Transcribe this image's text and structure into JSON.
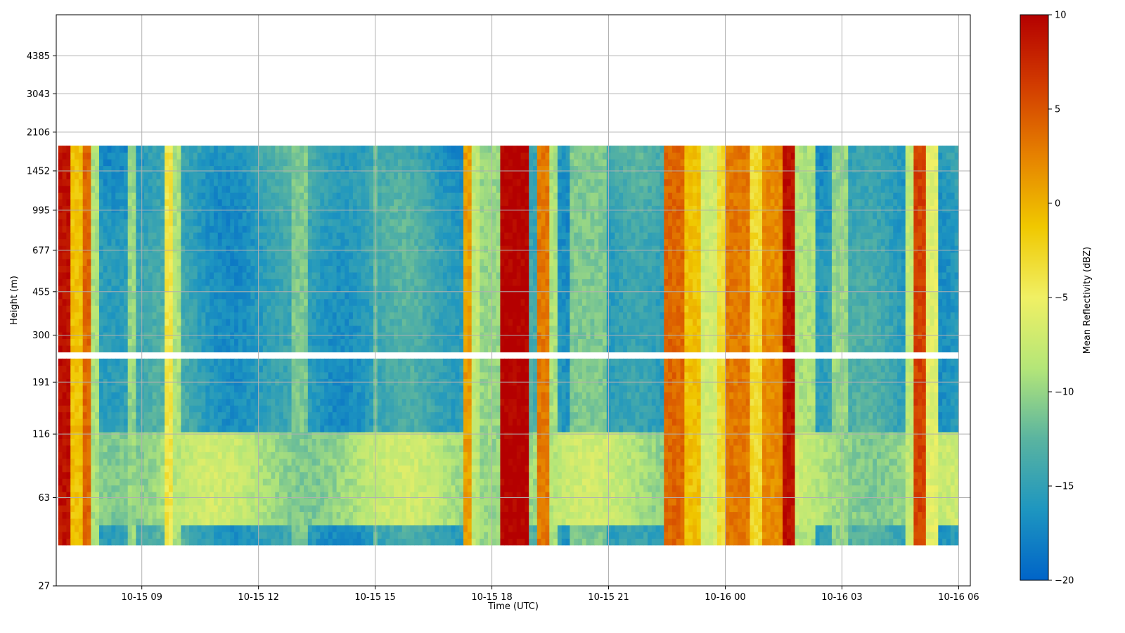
{
  "chart_data": {
    "type": "heatmap",
    "title": "",
    "xlabel": "Time (UTC)",
    "ylabel": "Height (m)",
    "x_ticks": [
      "10-15 09",
      "10-15 12",
      "10-15 15",
      "10-15 18",
      "10-15 21",
      "10-16 00",
      "10-16 03",
      "10-16 06"
    ],
    "x_tick_hours": [
      9,
      12,
      15,
      18,
      21,
      24,
      27,
      30
    ],
    "xlim_hours": [
      6.8,
      30.3
    ],
    "y_ticks": [
      27,
      63,
      116,
      191,
      300,
      455,
      677,
      995,
      1452,
      2106,
      3043,
      4385
    ],
    "y_scale": "log",
    "ylim": [
      27,
      6500
    ],
    "data_height_range": [
      40,
      1850
    ],
    "data_gap_height": [
      235,
      260
    ],
    "grid": true,
    "colorbar": {
      "label": "Mean Reflectivity (dBZ)",
      "range": [
        -20,
        10
      ],
      "ticks": [
        10,
        5,
        0,
        -5,
        -10,
        -15,
        -20
      ],
      "colormap": [
        "#0064c8",
        "#1e96c0",
        "#5ab4a0",
        "#b4e678",
        "#f0f064",
        "#f0c800",
        "#e68200",
        "#d23c00",
        "#b40000"
      ]
    },
    "background_dbz": -15,
    "bands": [
      {
        "start_hour": 6.9,
        "end_hour": 7.15,
        "dbz": 9
      },
      {
        "start_hour": 7.15,
        "end_hour": 7.5,
        "dbz": -1
      },
      {
        "start_hour": 7.5,
        "end_hour": 7.65,
        "dbz": 4
      },
      {
        "start_hour": 7.65,
        "end_hour": 7.9,
        "dbz": -9
      },
      {
        "start_hour": 8.6,
        "end_hour": 8.8,
        "dbz": -10
      },
      {
        "start_hour": 9.6,
        "end_hour": 9.8,
        "dbz": -4
      },
      {
        "start_hour": 9.8,
        "end_hour": 10.05,
        "dbz": -9
      },
      {
        "start_hour": 12.9,
        "end_hour": 13.3,
        "dbz": -11
      },
      {
        "start_hour": 14.9,
        "end_hour": 15.1,
        "dbz": -12
      },
      {
        "start_hour": 17.3,
        "end_hour": 17.5,
        "dbz": 1
      },
      {
        "start_hour": 17.5,
        "end_hour": 17.65,
        "dbz": -8
      },
      {
        "start_hour": 17.65,
        "end_hour": 18.2,
        "dbz": -10
      },
      {
        "start_hour": 18.2,
        "end_hour": 18.9,
        "dbz": 10
      },
      {
        "start_hour": 19.2,
        "end_hour": 19.45,
        "dbz": 3
      },
      {
        "start_hour": 19.45,
        "end_hour": 19.7,
        "dbz": -9
      },
      {
        "start_hour": 20.0,
        "end_hour": 21.0,
        "dbz": -11
      },
      {
        "start_hour": 22.4,
        "end_hour": 22.9,
        "dbz": 4
      },
      {
        "start_hour": 22.9,
        "end_hour": 23.4,
        "dbz": -1
      },
      {
        "start_hour": 23.4,
        "end_hour": 23.8,
        "dbz": -7
      },
      {
        "start_hour": 23.8,
        "end_hour": 24.0,
        "dbz": -3
      },
      {
        "start_hour": 24.0,
        "end_hour": 24.6,
        "dbz": 3
      },
      {
        "start_hour": 24.6,
        "end_hour": 25.0,
        "dbz": -3
      },
      {
        "start_hour": 25.0,
        "end_hour": 25.5,
        "dbz": 2
      },
      {
        "start_hour": 25.5,
        "end_hour": 25.8,
        "dbz": 9
      },
      {
        "start_hour": 25.8,
        "end_hour": 26.3,
        "dbz": -9
      },
      {
        "start_hour": 26.7,
        "end_hour": 27.2,
        "dbz": -10
      },
      {
        "start_hour": 28.6,
        "end_hour": 28.85,
        "dbz": -8
      },
      {
        "start_hour": 28.85,
        "end_hour": 29.15,
        "dbz": 6
      },
      {
        "start_hour": 29.15,
        "end_hour": 29.45,
        "dbz": -6
      }
    ]
  }
}
